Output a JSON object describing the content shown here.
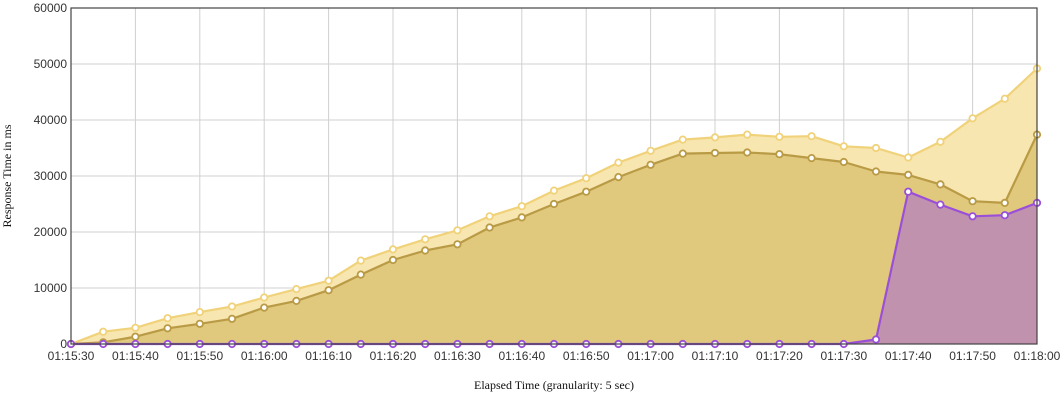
{
  "chart_data": {
    "type": "area",
    "title": "",
    "xlabel": "Elapsed Time (granularity: 5 sec)",
    "ylabel": "Response Time in ms",
    "ylim": [
      0,
      60000
    ],
    "yticks": [
      "0",
      "10000",
      "20000",
      "30000",
      "40000",
      "50000",
      "60000"
    ],
    "xticks": [
      "01:15:30",
      "01:15:40",
      "01:15:50",
      "01:16:00",
      "01:16:10",
      "01:16:20",
      "01:16:30",
      "01:16:40",
      "01:16:50",
      "01:17:00",
      "01:17:10",
      "01:17:20",
      "01:17:30",
      "01:17:40",
      "01:17:50",
      "01:18:00"
    ],
    "grid": true,
    "x": [
      "01:15:30",
      "01:15:35",
      "01:15:40",
      "01:15:45",
      "01:15:50",
      "01:15:55",
      "01:16:00",
      "01:16:05",
      "01:16:10",
      "01:16:15",
      "01:16:20",
      "01:16:25",
      "01:16:30",
      "01:16:35",
      "01:16:40",
      "01:16:45",
      "01:16:50",
      "01:16:55",
      "01:17:00",
      "01:17:05",
      "01:17:10",
      "01:17:15",
      "01:17:20",
      "01:17:25",
      "01:17:30",
      "01:17:35",
      "01:17:40",
      "01:17:45",
      "01:17:50",
      "01:17:55",
      "01:18:00"
    ],
    "series": [
      {
        "color": "#f0d27a",
        "fill": "#f8e6b0",
        "values": [
          0,
          2200,
          2900,
          4600,
          5700,
          6700,
          8300,
          9800,
          11300,
          14900,
          16900,
          18700,
          20300,
          22800,
          24600,
          27400,
          29600,
          32400,
          34500,
          36500,
          36900,
          37400,
          37000,
          37100,
          35300,
          35000,
          33300,
          36100,
          40300,
          43800,
          49200
        ]
      },
      {
        "color": "#b99a45",
        "fill": "#e0c87d",
        "values": [
          0,
          300,
          1300,
          2800,
          3600,
          4500,
          6500,
          7700,
          9600,
          12400,
          15000,
          16700,
          17800,
          20800,
          22600,
          25000,
          27200,
          29800,
          32000,
          34000,
          34100,
          34200,
          33900,
          33200,
          32500,
          30800,
          30200,
          28500,
          25500,
          25200,
          37400
        ]
      },
      {
        "color": "#9b4fd8",
        "fill": "#c092ad",
        "values": [
          0,
          0,
          0,
          0,
          0,
          0,
          0,
          0,
          0,
          0,
          0,
          0,
          0,
          0,
          0,
          0,
          0,
          0,
          0,
          0,
          0,
          0,
          0,
          0,
          0,
          800,
          27200,
          24900,
          22800,
          23000,
          25200
        ]
      }
    ]
  }
}
